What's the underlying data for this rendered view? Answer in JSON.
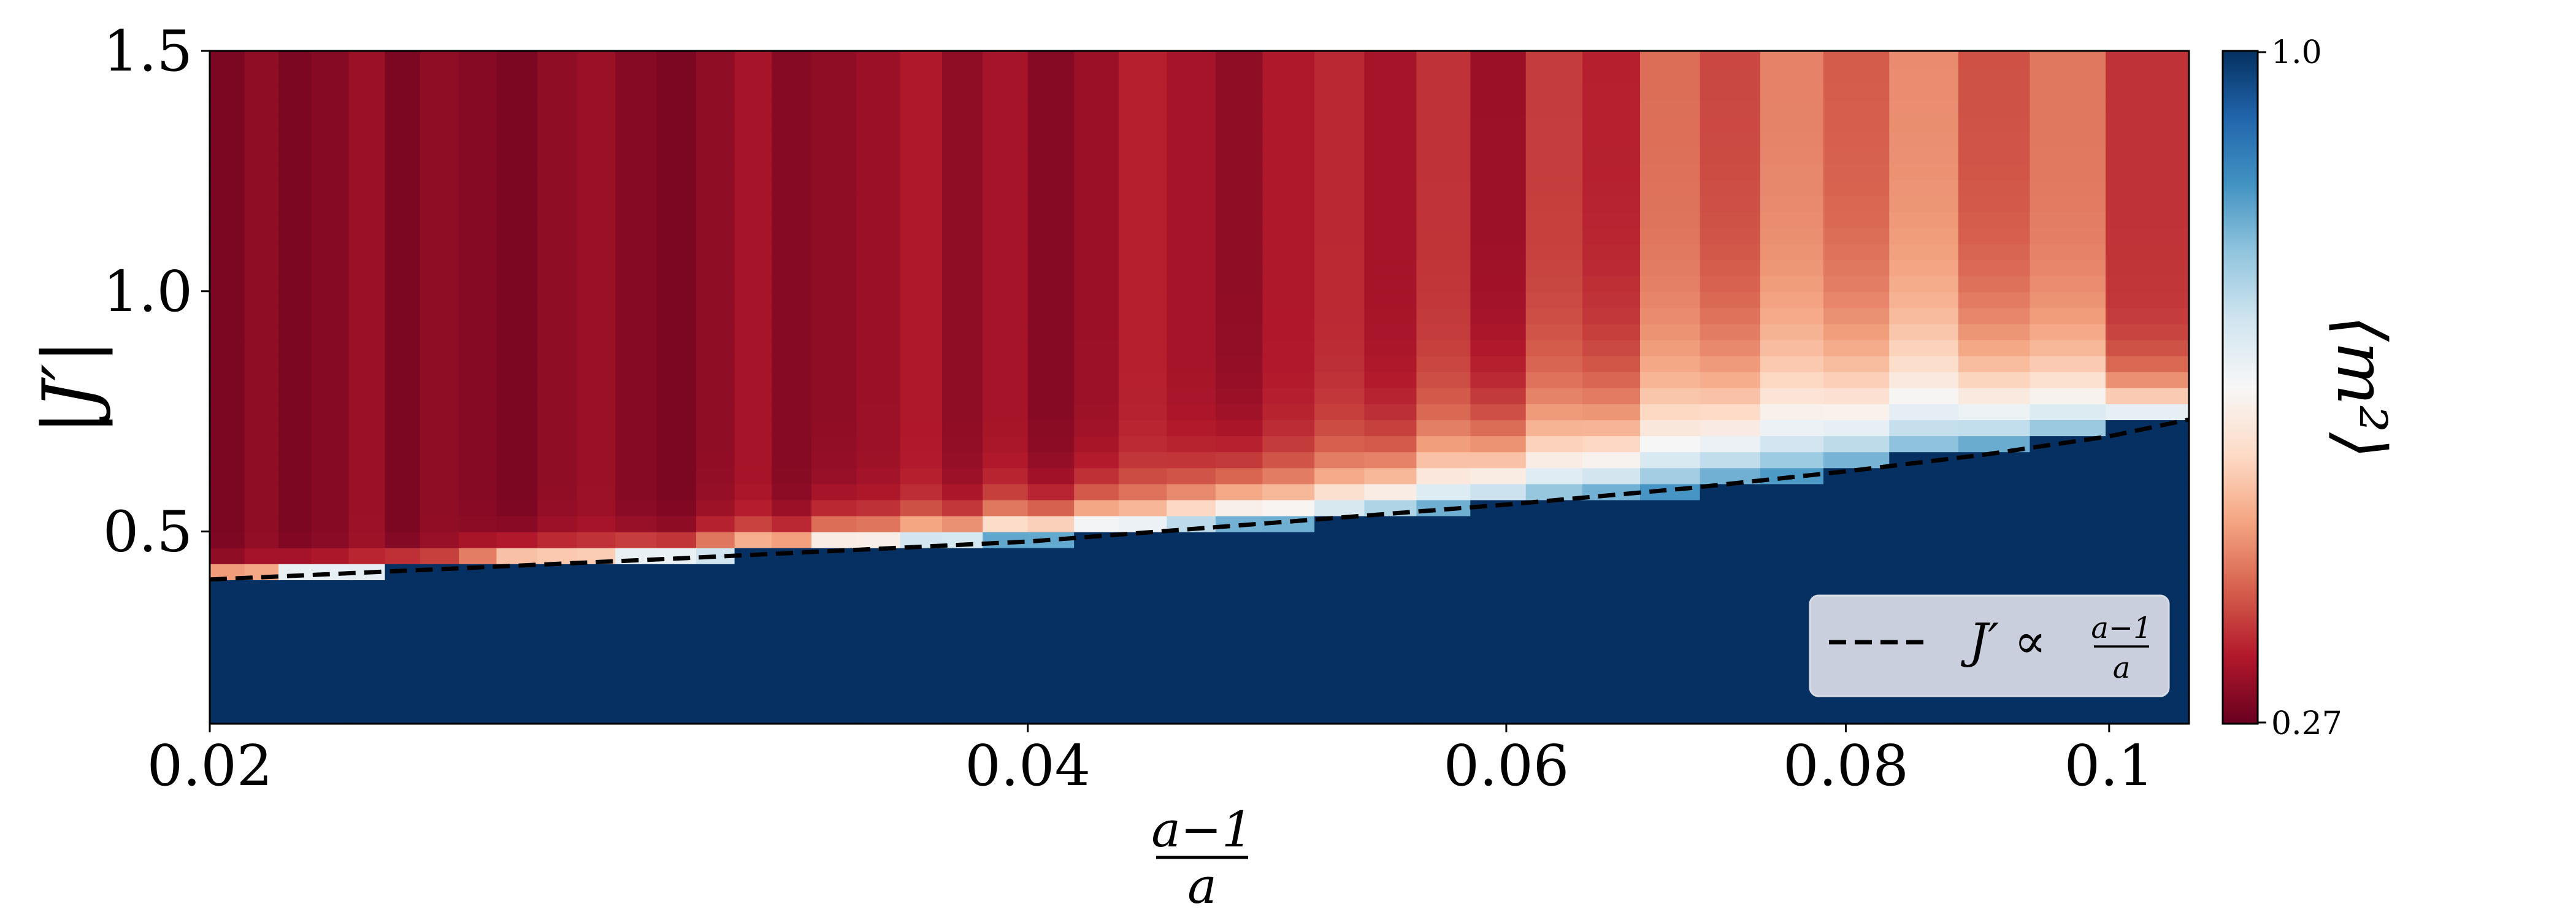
{
  "chart_data": {
    "type": "heatmap",
    "title": "",
    "x_axis": {
      "label_numerator": "a−1",
      "label_denominator": "a",
      "scale": "log",
      "range": [
        0.02,
        0.107
      ],
      "ticks": [
        {
          "value": 0.02,
          "label": "0.02"
        },
        {
          "value": 0.04,
          "label": "0.04"
        },
        {
          "value": 0.06,
          "label": "0.06"
        },
        {
          "value": 0.08,
          "label": "0.08"
        },
        {
          "value": 0.1,
          "label": "0.1"
        }
      ],
      "column_edges": [
        0.02,
        0.0206,
        0.0212,
        0.0218,
        0.0225,
        0.0232,
        0.0239,
        0.0247,
        0.0255,
        0.0264,
        0.0273,
        0.0282,
        0.0292,
        0.0302,
        0.0312,
        0.0322,
        0.0333,
        0.0346,
        0.0359,
        0.0372,
        0.0385,
        0.04,
        0.0416,
        0.0432,
        0.045,
        0.0469,
        0.0488,
        0.051,
        0.0532,
        0.0556,
        0.0582,
        0.061,
        0.064,
        0.0672,
        0.0707,
        0.0744,
        0.0785,
        0.083,
        0.088,
        0.0935,
        0.0997,
        0.107
      ]
    },
    "y_axis": {
      "label": "|J′|",
      "range": [
        0.1,
        1.5
      ],
      "ticks": [
        {
          "value": 0.5,
          "label": "0.5"
        },
        {
          "value": 1.0,
          "label": "1.0"
        },
        {
          "value": 1.5,
          "label": "1.5"
        }
      ],
      "row_height": 0.0333
    },
    "series": {
      "quantity": "⟨m²⟩",
      "low_fill_level": 0.27,
      "high_fill_level": 1.0,
      "transition_Jprime": [
        0.4,
        0.4,
        0.41,
        0.41,
        0.41,
        0.42,
        0.42,
        0.42,
        0.43,
        0.43,
        0.43,
        0.44,
        0.44,
        0.44,
        0.45,
        0.45,
        0.46,
        0.46,
        0.47,
        0.47,
        0.48,
        0.48,
        0.49,
        0.49,
        0.5,
        0.51,
        0.51,
        0.52,
        0.53,
        0.54,
        0.55,
        0.56,
        0.57,
        0.58,
        0.6,
        0.61,
        0.63,
        0.65,
        0.67,
        0.69,
        0.72
      ],
      "transition_width": [
        0.02,
        0.02,
        0.02,
        0.02,
        0.02,
        0.02,
        0.02,
        0.03,
        0.03,
        0.03,
        0.03,
        0.03,
        0.03,
        0.04,
        0.04,
        0.04,
        0.05,
        0.05,
        0.05,
        0.05,
        0.06,
        0.06,
        0.07,
        0.07,
        0.08,
        0.09,
        0.09,
        0.1,
        0.11,
        0.13,
        0.14,
        0.16,
        0.17,
        0.19,
        0.2,
        0.21,
        0.21,
        0.21,
        0.18,
        0.15,
        0.08
      ],
      "ordered_region_level": [
        0.29,
        0.31,
        0.29,
        0.3,
        0.32,
        0.29,
        0.31,
        0.3,
        0.29,
        0.31,
        0.32,
        0.3,
        0.29,
        0.31,
        0.33,
        0.3,
        0.31,
        0.32,
        0.34,
        0.31,
        0.33,
        0.3,
        0.32,
        0.35,
        0.33,
        0.31,
        0.34,
        0.36,
        0.33,
        0.37,
        0.32,
        0.38,
        0.35,
        0.43,
        0.39,
        0.45,
        0.41,
        0.46,
        0.4,
        0.44,
        0.37
      ]
    },
    "fit_line": {
      "label_lhs": "J′ ∝",
      "label_numerator": "a−1",
      "label_denominator": "a",
      "points": [
        {
          "x": 0.02,
          "y": 0.4
        },
        {
          "x": 0.03,
          "y": 0.445
        },
        {
          "x": 0.04,
          "y": 0.479
        },
        {
          "x": 0.05,
          "y": 0.521
        },
        {
          "x": 0.06,
          "y": 0.556
        },
        {
          "x": 0.07,
          "y": 0.59
        },
        {
          "x": 0.08,
          "y": 0.625
        },
        {
          "x": 0.09,
          "y": 0.66
        },
        {
          "x": 0.1,
          "y": 0.698
        },
        {
          "x": 0.107,
          "y": 0.733
        }
      ],
      "style": "dashed",
      "color": "#000000"
    },
    "legend": {
      "placement": "lower-right"
    },
    "colorbar": {
      "label": "⟨m²⟩",
      "min_label": "0.27",
      "max_label": "1.0",
      "colormap": "RdBu",
      "colors": [
        "#67001f",
        "#b2182b",
        "#d6604d",
        "#f4a582",
        "#fddbc7",
        "#f7f7f7",
        "#d1e5f0",
        "#92c5de",
        "#4393c3",
        "#2166ac",
        "#053061"
      ]
    },
    "grid": false
  }
}
